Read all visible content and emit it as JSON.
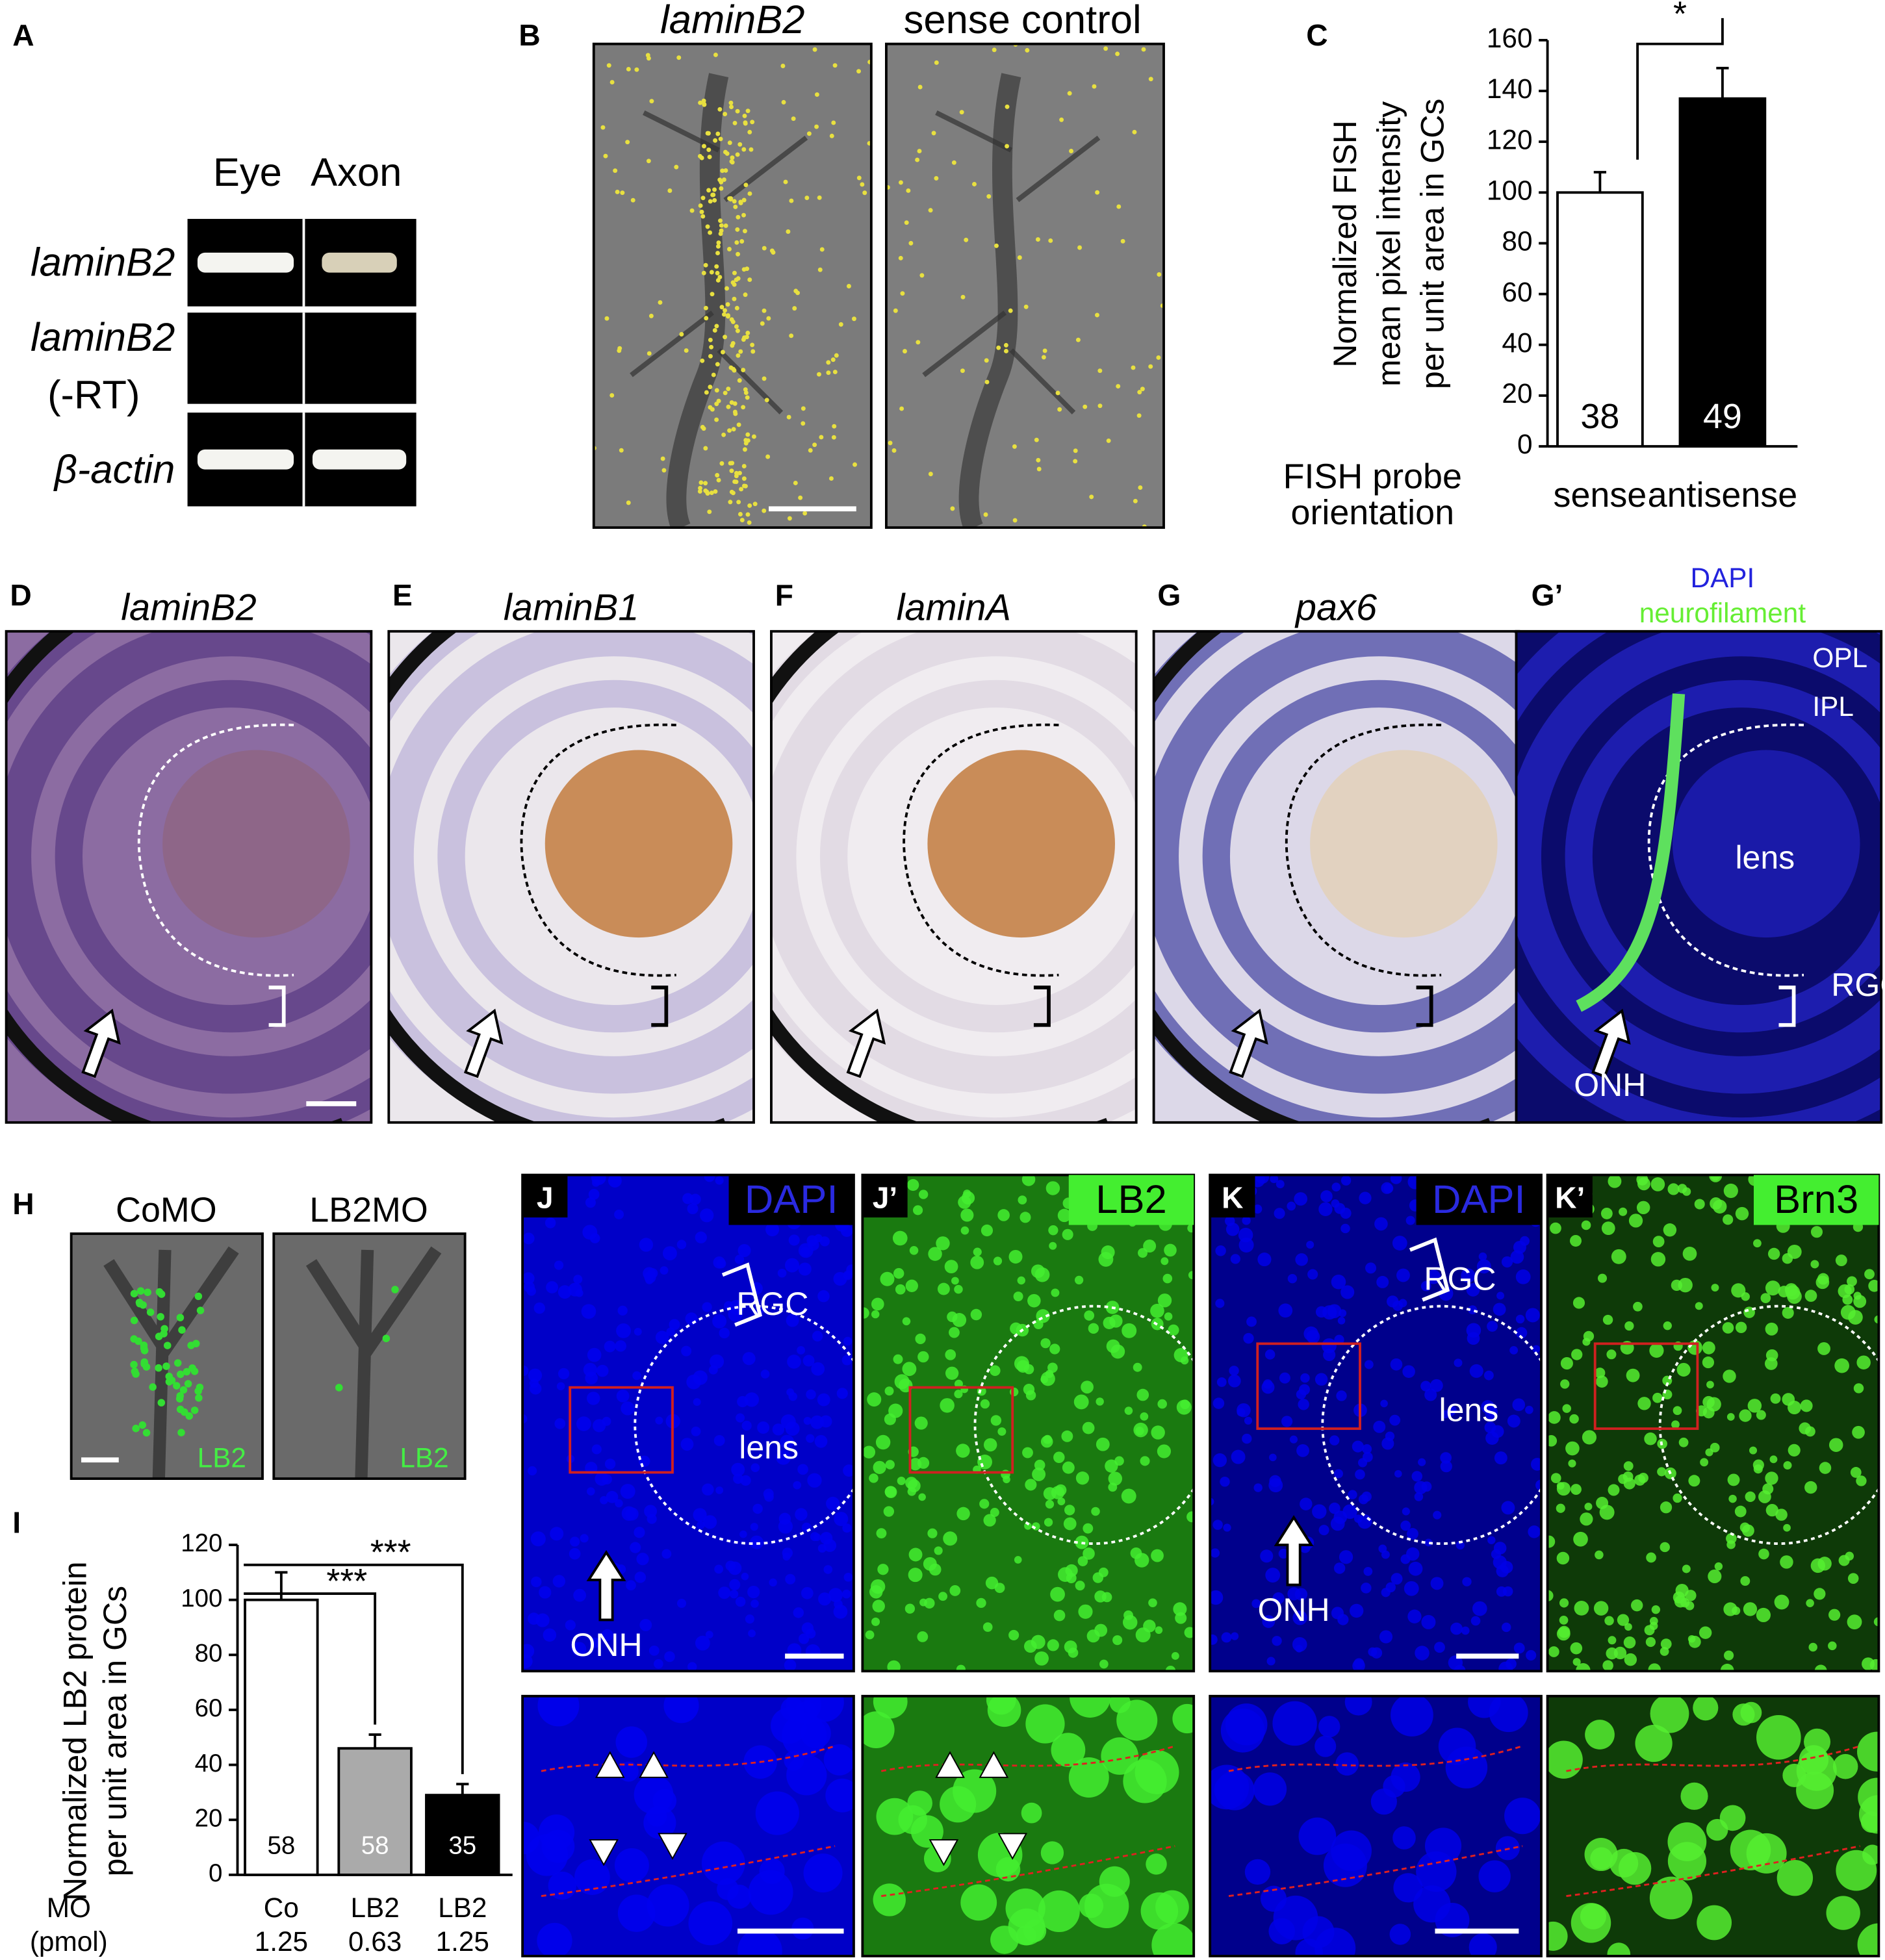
{
  "panels": {
    "A": {
      "letter": "A",
      "columns": [
        "Eye",
        "Axon"
      ],
      "rows": [
        "laminB2",
        "laminB2",
        "(-RT)",
        "β-actin"
      ]
    },
    "B": {
      "letter": "B",
      "titles": [
        "laminB2",
        "sense control"
      ]
    },
    "D": {
      "letter": "D",
      "title": "laminB2"
    },
    "E": {
      "letter": "E",
      "title": "laminB1"
    },
    "F": {
      "letter": "F",
      "title": "laminA"
    },
    "G": {
      "letter": "G",
      "title": "pax6"
    },
    "G2": {
      "letter": "G’",
      "stains": [
        "DAPI",
        "neurofilament"
      ],
      "labels": [
        "OPL",
        "IPL",
        "lens",
        "RGC",
        "ONH"
      ]
    },
    "H": {
      "letter": "H",
      "titles": [
        "CoMO",
        "LB2MO"
      ],
      "stains": [
        "LB2",
        "LB2"
      ]
    },
    "J": {
      "letter": "J",
      "stain": "DAPI",
      "labels": [
        "RGC",
        "lens",
        "ONH"
      ]
    },
    "J2": {
      "letter": "J’",
      "stain": "LB2"
    },
    "K": {
      "letter": "K",
      "stain": "DAPI",
      "labels": [
        "RGC",
        "lens",
        "ONH"
      ]
    },
    "K2": {
      "letter": "K’",
      "stain": "Brn3"
    }
  },
  "chart_data": [
    {
      "type": "bar",
      "panel": "C",
      "ylabel": [
        "Normalized FISH",
        "mean pixel intensity",
        "per unit area in GCs"
      ],
      "xlabel": [
        "FISH probe",
        "orientation"
      ],
      "categories": [
        "sense",
        "antisense"
      ],
      "values": [
        100,
        137
      ],
      "errors": [
        8,
        12
      ],
      "n": [
        38,
        49
      ],
      "colors": [
        "#ffffff",
        "#000000"
      ],
      "ylim": [
        0,
        160
      ],
      "yticks": [
        0,
        20,
        40,
        60,
        80,
        100,
        120,
        140,
        160
      ],
      "significance": [
        {
          "from": 0,
          "to": 1,
          "label": "*"
        }
      ]
    },
    {
      "type": "bar",
      "panel": "I",
      "ylabel": [
        "Normalized LB2 protein",
        "per unit area in GCs"
      ],
      "category_label": "MO",
      "dose_label": "(pmol)",
      "categories": [
        "Co",
        "LB2",
        "LB2"
      ],
      "doses": [
        1.25,
        0.63,
        1.25
      ],
      "values": [
        100,
        46,
        29
      ],
      "errors": [
        10,
        5,
        4
      ],
      "n": [
        58,
        58,
        35
      ],
      "colors": [
        "#ffffff",
        "#aaaaaa",
        "#000000"
      ],
      "ylim": [
        0,
        120
      ],
      "yticks": [
        0,
        20,
        40,
        60,
        80,
        100,
        120
      ],
      "significance": [
        {
          "from": 0,
          "to": 1,
          "label": "***"
        },
        {
          "from": 0,
          "to": 2,
          "label": "***"
        }
      ]
    }
  ]
}
